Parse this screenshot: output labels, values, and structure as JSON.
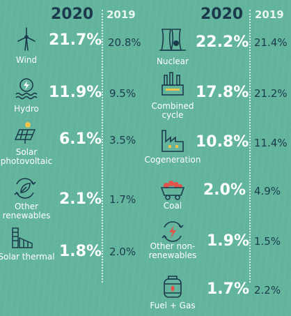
{
  "headers": {
    "left_2020": "2020",
    "left_2019": "2019",
    "right_2020": "2020",
    "right_2019": "2019"
  },
  "chart_data": {
    "type": "table",
    "columns": [
      "2020",
      "2019"
    ],
    "left_group": [
      {
        "label": "Wind",
        "v2020": "21.7%",
        "v2019": "20.8%",
        "icon": "wind-turbine-icon"
      },
      {
        "label": "Hydro",
        "v2020": "11.9%",
        "v2019": "9.5%",
        "icon": "hydro-icon"
      },
      {
        "label": "Solar photovoltaic",
        "v2020": "6.1%",
        "v2019": "3.5%",
        "icon": "solar-panel-icon"
      },
      {
        "label": "Other renewables",
        "v2020": "2.1%",
        "v2019": "1.7%",
        "icon": "leaf-recycle-icon"
      },
      {
        "label": "Solar thermal",
        "v2020": "1.8%",
        "v2019": "2.0%",
        "icon": "solar-thermal-icon"
      }
    ],
    "right_group": [
      {
        "label": "Nuclear",
        "v2020": "22.2%",
        "v2019": "21.4%",
        "icon": "nuclear-plant-icon"
      },
      {
        "label": "Combined cycle",
        "v2020": "17.8%",
        "v2019": "21.2%",
        "icon": "combined-cycle-icon"
      },
      {
        "label": "Cogeneration",
        "v2020": "10.8%",
        "v2019": "11.4%",
        "icon": "factory-icon"
      },
      {
        "label": "Coal",
        "v2020": "2.0%",
        "v2019": "4.9%",
        "icon": "coal-cart-icon"
      },
      {
        "label": "Other non-renewables",
        "v2020": "1.9%",
        "v2019": "1.5%",
        "icon": "energy-recycle-icon"
      },
      {
        "label": "Fuel + Gas",
        "v2020": "1.7%",
        "v2019": "2.2%",
        "icon": "gas-cylinder-icon"
      }
    ]
  },
  "colors": {
    "background": "#62b49d",
    "dark_text": "#1b3a4c",
    "light_text": "#ffffff"
  }
}
